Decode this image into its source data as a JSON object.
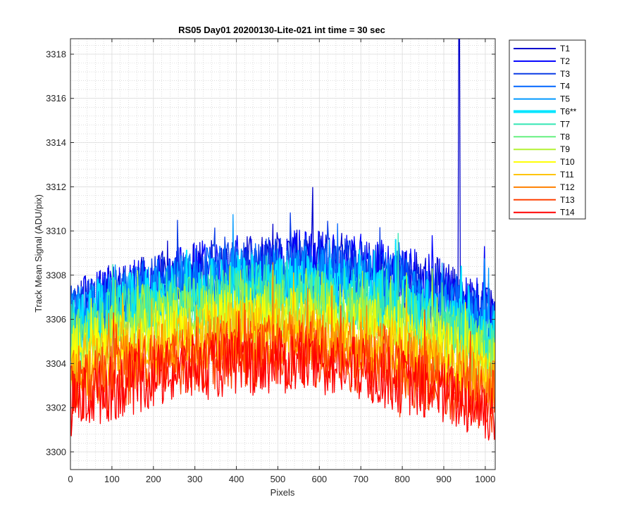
{
  "chart_data": {
    "type": "line",
    "title": "RS05 Day01 20200130-Lite-021 int time = 30 sec",
    "xlabel": "Pixels",
    "ylabel": "Track Mean Signal (ADU/pix)",
    "xlim": [
      0,
      1024
    ],
    "ylim": [
      3299.2,
      3318.7
    ],
    "x_ticks": [
      0,
      100,
      200,
      300,
      400,
      500,
      600,
      700,
      800,
      900,
      1000
    ],
    "y_ticks": [
      3300,
      3302,
      3304,
      3306,
      3308,
      3310,
      3312,
      3314,
      3316,
      3318
    ],
    "grid": true,
    "minor_grid": true,
    "legend_position": "outside-right",
    "series": [
      {
        "name": "T1",
        "color": "#0000CC",
        "profile": {
          "x": [
            0,
            100,
            200,
            300,
            400,
            500,
            600,
            700,
            800,
            900,
            1024
          ],
          "y": [
            3306.3,
            3307.0,
            3307.5,
            3308.0,
            3308.3,
            3308.5,
            3308.6,
            3308.4,
            3307.9,
            3307.2,
            3306.0
          ]
        },
        "noise_amplitude": 1.5,
        "spike": {
          "x": 937,
          "y": 3318.7
        }
      },
      {
        "name": "T2",
        "color": "#0000FF",
        "profile": {
          "x": [
            0,
            100,
            200,
            300,
            400,
            500,
            600,
            700,
            800,
            900,
            1024
          ],
          "y": [
            3306.3,
            3307.0,
            3307.5,
            3308.0,
            3308.3,
            3308.5,
            3308.6,
            3308.4,
            3307.9,
            3307.2,
            3306.0
          ]
        },
        "noise_amplitude": 1.5
      },
      {
        "name": "T3",
        "color": "#0A3CE6",
        "profile": {
          "x": [
            0,
            100,
            200,
            300,
            400,
            500,
            600,
            700,
            800,
            900,
            1024
          ],
          "y": [
            3306.0,
            3306.8,
            3307.4,
            3307.8,
            3308.1,
            3308.3,
            3308.3,
            3308.1,
            3307.6,
            3306.9,
            3305.7
          ]
        },
        "noise_amplitude": 1.5
      },
      {
        "name": "T4",
        "color": "#0066FF",
        "profile": {
          "x": [
            0,
            100,
            200,
            300,
            400,
            500,
            600,
            700,
            800,
            900,
            1024
          ],
          "y": [
            3305.9,
            3306.7,
            3307.3,
            3307.7,
            3307.9,
            3308.0,
            3308.0,
            3307.8,
            3307.3,
            3306.6,
            3305.5
          ]
        },
        "noise_amplitude": 1.5
      },
      {
        "name": "T5",
        "color": "#0099FF",
        "profile": {
          "x": [
            0,
            100,
            200,
            300,
            400,
            500,
            600,
            700,
            800,
            900,
            1024
          ],
          "y": [
            3305.8,
            3306.6,
            3307.2,
            3307.5,
            3307.7,
            3307.8,
            3307.8,
            3307.5,
            3307.0,
            3306.3,
            3305.3
          ]
        },
        "noise_amplitude": 1.5
      },
      {
        "name": "T6**",
        "color": "#00E5FF",
        "emphasized": true,
        "profile": {
          "x": [
            0,
            100,
            200,
            300,
            400,
            500,
            600,
            700,
            800,
            900,
            1024
          ],
          "y": [
            3305.6,
            3306.4,
            3306.9,
            3307.2,
            3307.4,
            3307.5,
            3307.4,
            3307.1,
            3306.6,
            3305.9,
            3305.0
          ]
        },
        "noise_amplitude": 1.5
      },
      {
        "name": "T7",
        "color": "#33E6B3",
        "profile": {
          "x": [
            0,
            100,
            200,
            300,
            400,
            500,
            600,
            700,
            800,
            900,
            1024
          ],
          "y": [
            3305.3,
            3306.0,
            3306.6,
            3306.9,
            3307.1,
            3307.2,
            3307.1,
            3306.8,
            3306.3,
            3305.6,
            3304.7
          ]
        },
        "noise_amplitude": 1.5
      },
      {
        "name": "T8",
        "color": "#66F080",
        "profile": {
          "x": [
            0,
            100,
            200,
            300,
            400,
            500,
            600,
            700,
            800,
            900,
            1024
          ],
          "y": [
            3305.0,
            3305.7,
            3306.2,
            3306.5,
            3306.7,
            3306.8,
            3306.7,
            3306.4,
            3305.9,
            3305.3,
            3304.4
          ]
        },
        "noise_amplitude": 1.5
      },
      {
        "name": "T9",
        "color": "#B3F233",
        "profile": {
          "x": [
            0,
            100,
            200,
            300,
            400,
            500,
            600,
            700,
            800,
            900,
            1024
          ],
          "y": [
            3304.6,
            3305.3,
            3305.8,
            3306.1,
            3306.3,
            3306.4,
            3306.3,
            3306.0,
            3305.5,
            3304.9,
            3304.0
          ]
        },
        "noise_amplitude": 1.5
      },
      {
        "name": "T10",
        "color": "#FFFF00",
        "profile": {
          "x": [
            0,
            100,
            200,
            300,
            400,
            500,
            600,
            700,
            800,
            900,
            1024
          ],
          "y": [
            3304.2,
            3304.9,
            3305.4,
            3305.7,
            3305.9,
            3306.0,
            3305.9,
            3305.6,
            3305.1,
            3304.5,
            3303.6
          ]
        },
        "noise_amplitude": 1.5
      },
      {
        "name": "T11",
        "color": "#FFC400",
        "profile": {
          "x": [
            0,
            100,
            200,
            300,
            400,
            500,
            600,
            700,
            800,
            900,
            1024
          ],
          "y": [
            3303.7,
            3304.4,
            3304.9,
            3305.2,
            3305.4,
            3305.5,
            3305.4,
            3305.1,
            3304.6,
            3304.0,
            3303.2
          ]
        },
        "noise_amplitude": 1.5
      },
      {
        "name": "T12",
        "color": "#FF8000",
        "profile": {
          "x": [
            0,
            100,
            200,
            300,
            400,
            500,
            600,
            700,
            800,
            900,
            1024
          ],
          "y": [
            3303.3,
            3303.9,
            3304.4,
            3304.7,
            3304.9,
            3305.0,
            3304.9,
            3304.6,
            3304.1,
            3303.5,
            3302.7
          ]
        },
        "noise_amplitude": 1.5
      },
      {
        "name": "T13",
        "color": "#FF4000",
        "profile": {
          "x": [
            0,
            100,
            200,
            300,
            400,
            500,
            600,
            700,
            800,
            900,
            1024
          ],
          "y": [
            3302.8,
            3303.4,
            3303.9,
            3304.2,
            3304.4,
            3304.5,
            3304.4,
            3304.1,
            3303.6,
            3303.0,
            3302.3
          ]
        },
        "noise_amplitude": 1.5
      },
      {
        "name": "T14",
        "color": "#FF0000",
        "profile": {
          "x": [
            0,
            100,
            200,
            300,
            400,
            500,
            600,
            700,
            800,
            900,
            1024
          ],
          "y": [
            3302.2,
            3302.9,
            3303.4,
            3303.8,
            3304.0,
            3304.1,
            3304.0,
            3303.7,
            3303.2,
            3302.6,
            3301.8
          ]
        },
        "noise_amplitude": 1.5
      }
    ]
  }
}
